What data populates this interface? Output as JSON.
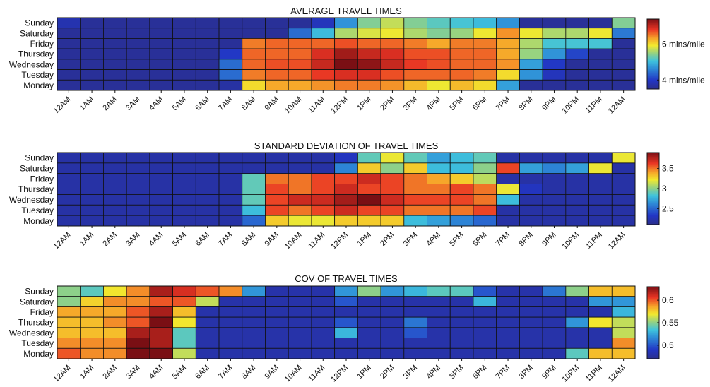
{
  "chart_data": [
    {
      "type": "heatmap",
      "title": "AVERAGE TRAVEL TIMES",
      "xlabel": "",
      "ylabel": "",
      "days": [
        "Sunday",
        "Saturday",
        "Friday",
        "Thursday",
        "Wednesday",
        "Tuesday",
        "Monday"
      ],
      "hours": [
        "12AM",
        "1AM",
        "2AM",
        "3AM",
        "4AM",
        "5AM",
        "6AM",
        "7AM",
        "8AM",
        "9AM",
        "10AM",
        "11AM",
        "12PM",
        "1PM",
        "2PM",
        "3PM",
        "4PM",
        "5PM",
        "6PM",
        "7PM",
        "8PM",
        "9PM",
        "10PM",
        "11PM",
        "12AM"
      ],
      "values": [
        [
          3.8,
          3.6,
          3.6,
          3.6,
          3.6,
          3.6,
          3.6,
          3.6,
          3.6,
          3.6,
          3.6,
          3.9,
          4.7,
          5.4,
          5.7,
          5.4,
          5.2,
          5.1,
          5.0,
          4.7,
          3.6,
          3.6,
          3.6,
          3.6,
          5.4
        ],
        [
          3.6,
          3.6,
          3.6,
          3.6,
          3.6,
          3.6,
          3.6,
          3.6,
          3.6,
          3.6,
          4.4,
          5.0,
          5.6,
          5.8,
          5.9,
          5.6,
          5.4,
          5.5,
          5.9,
          6.4,
          5.9,
          5.6,
          5.6,
          5.9,
          4.5
        ],
        [
          3.6,
          3.6,
          3.6,
          3.6,
          3.6,
          3.6,
          3.6,
          3.6,
          6.5,
          6.6,
          6.6,
          6.6,
          6.7,
          6.6,
          6.6,
          6.5,
          6.3,
          6.5,
          6.5,
          6.3,
          5.6,
          5.1,
          5.1,
          5.1,
          3.6
        ],
        [
          3.6,
          3.6,
          3.6,
          3.6,
          3.6,
          3.6,
          3.6,
          4.0,
          6.6,
          6.6,
          6.6,
          6.9,
          7.2,
          7.0,
          6.9,
          6.7,
          6.7,
          6.6,
          6.6,
          6.3,
          5.5,
          4.7,
          4.1,
          3.6,
          3.6
        ],
        [
          3.6,
          3.6,
          3.6,
          3.6,
          3.6,
          3.6,
          3.6,
          4.4,
          6.6,
          6.7,
          6.7,
          7.0,
          7.4,
          7.3,
          7.0,
          6.8,
          6.7,
          6.6,
          6.6,
          6.4,
          4.8,
          4.0,
          3.6,
          3.6,
          3.6
        ],
        [
          3.6,
          3.6,
          3.6,
          3.6,
          3.6,
          3.6,
          3.6,
          4.4,
          6.5,
          6.6,
          6.6,
          6.8,
          6.9,
          6.9,
          6.7,
          6.6,
          6.6,
          6.6,
          6.5,
          6.0,
          4.7,
          3.9,
          3.6,
          3.6,
          3.6
        ],
        [
          3.6,
          3.6,
          3.6,
          3.6,
          3.6,
          3.6,
          3.6,
          3.7,
          6.0,
          6.3,
          6.3,
          6.4,
          6.5,
          6.5,
          6.4,
          6.2,
          5.9,
          6.2,
          6.0,
          4.8,
          3.6,
          3.6,
          3.6,
          3.6,
          3.6
        ]
      ],
      "vmin": 3.5,
      "vmax": 7.4,
      "colorbar_ticks": [
        {
          "value": 4,
          "label": "4 mins/mile"
        },
        {
          "value": 6,
          "label": "6 mins/mile"
        }
      ],
      "grid": true,
      "colormap": "jet"
    },
    {
      "type": "heatmap",
      "title": "STANDARD DEVIATION OF TRAVEL TIMES",
      "xlabel": "",
      "ylabel": "",
      "days": [
        "Sunday",
        "Saturday",
        "Friday",
        "Thursday",
        "Wednesday",
        "Tuesday",
        "Monday"
      ],
      "hours": [
        "12AM",
        "1AM",
        "2AM",
        "3AM",
        "4AM",
        "5AM",
        "6AM",
        "7AM",
        "8AM",
        "9AM",
        "10AM",
        "11AM",
        "12PM",
        "1PM",
        "2PM",
        "3PM",
        "4PM",
        "5PM",
        "6PM",
        "7PM",
        "8PM",
        "9PM",
        "10PM",
        "11PM",
        "12AM"
      ],
      "values": [
        [
          2.2,
          2.2,
          2.2,
          2.2,
          2.2,
          2.2,
          2.2,
          2.2,
          2.2,
          2.2,
          2.2,
          2.2,
          2.3,
          2.9,
          3.2,
          2.9,
          2.7,
          2.8,
          2.9,
          2.2,
          2.2,
          2.2,
          2.2,
          2.2,
          3.2
        ],
        [
          2.2,
          2.2,
          2.2,
          2.2,
          2.2,
          2.2,
          2.2,
          2.2,
          2.2,
          2.2,
          2.2,
          2.2,
          2.6,
          3.3,
          3.0,
          3.3,
          2.8,
          2.8,
          3.0,
          3.6,
          2.7,
          2.6,
          2.7,
          3.2,
          2.2
        ],
        [
          2.2,
          2.2,
          2.2,
          2.2,
          2.2,
          2.2,
          2.2,
          2.2,
          2.9,
          3.5,
          3.5,
          3.6,
          3.6,
          3.7,
          3.6,
          3.5,
          3.4,
          3.3,
          3.1,
          2.2,
          2.2,
          2.2,
          2.2,
          2.2,
          2.2
        ],
        [
          2.2,
          2.2,
          2.2,
          2.2,
          2.2,
          2.2,
          2.2,
          2.2,
          2.9,
          3.6,
          3.5,
          3.6,
          3.7,
          3.6,
          3.6,
          3.5,
          3.5,
          3.6,
          3.5,
          3.2,
          2.3,
          2.2,
          2.2,
          2.2,
          2.2
        ],
        [
          2.2,
          2.2,
          2.2,
          2.2,
          2.2,
          2.2,
          2.2,
          2.2,
          2.9,
          3.6,
          3.7,
          3.7,
          3.8,
          3.9,
          3.7,
          3.6,
          3.6,
          3.6,
          3.5,
          2.8,
          2.2,
          2.2,
          2.2,
          2.2,
          2.2
        ],
        [
          2.2,
          2.2,
          2.2,
          2.2,
          2.2,
          2.2,
          2.2,
          2.2,
          2.8,
          3.6,
          3.5,
          3.6,
          3.7,
          3.6,
          3.6,
          3.5,
          3.5,
          3.5,
          3.6,
          2.2,
          2.2,
          2.2,
          2.2,
          2.2,
          2.2
        ],
        [
          2.2,
          2.2,
          2.2,
          2.2,
          2.2,
          2.2,
          2.2,
          2.2,
          2.5,
          3.3,
          3.2,
          3.2,
          3.3,
          3.3,
          3.3,
          2.8,
          2.7,
          2.6,
          2.5,
          2.2,
          2.2,
          2.2,
          2.2,
          2.2,
          2.2
        ]
      ],
      "vmin": 2.1,
      "vmax": 3.9,
      "colorbar_ticks": [
        {
          "value": 2.5,
          "label": "2.5"
        },
        {
          "value": 3,
          "label": "3"
        },
        {
          "value": 3.5,
          "label": "3.5"
        }
      ],
      "grid": true,
      "colormap": "jet"
    },
    {
      "type": "heatmap",
      "title": "COV OF TRAVEL TIMES",
      "xlabel": "",
      "ylabel": "",
      "days": [
        "Sunday",
        "Saturday",
        "Friday",
        "Thursday",
        "Wednesday",
        "Tuesday",
        "Monday"
      ],
      "hours": [
        "12AM",
        "1AM",
        "2AM",
        "3AM",
        "4AM",
        "5AM",
        "6AM",
        "7AM",
        "8AM",
        "9AM",
        "10AM",
        "11AM",
        "12PM",
        "1PM",
        "2PM",
        "3PM",
        "4PM",
        "5PM",
        "6PM",
        "7PM",
        "8PM",
        "9PM",
        "10PM",
        "11PM",
        "12AM"
      ],
      "values": [
        [
          0.55,
          0.54,
          0.57,
          0.59,
          0.62,
          0.61,
          0.6,
          0.59,
          0.52,
          0.48,
          0.48,
          0.48,
          0.52,
          0.55,
          0.52,
          0.53,
          0.54,
          0.54,
          0.5,
          0.48,
          0.48,
          0.51,
          0.55,
          0.58,
          0.58
        ],
        [
          0.55,
          0.575,
          0.59,
          0.59,
          0.6,
          0.6,
          0.56,
          0.48,
          0.48,
          0.48,
          0.48,
          0.48,
          0.5,
          0.48,
          0.48,
          0.48,
          0.48,
          0.48,
          0.53,
          0.48,
          0.48,
          0.48,
          0.48,
          0.52,
          0.52
        ],
        [
          0.585,
          0.585,
          0.585,
          0.6,
          0.62,
          0.58,
          0.48,
          0.48,
          0.48,
          0.48,
          0.48,
          0.48,
          0.48,
          0.48,
          0.48,
          0.48,
          0.48,
          0.48,
          0.48,
          0.48,
          0.48,
          0.48,
          0.48,
          0.48,
          0.53
        ],
        [
          0.58,
          0.58,
          0.59,
          0.6,
          0.63,
          0.57,
          0.48,
          0.48,
          0.48,
          0.48,
          0.48,
          0.48,
          0.5,
          0.48,
          0.48,
          0.51,
          0.48,
          0.48,
          0.48,
          0.48,
          0.48,
          0.48,
          0.52,
          0.57,
          0.56
        ],
        [
          0.58,
          0.58,
          0.58,
          0.62,
          0.62,
          0.54,
          0.48,
          0.48,
          0.48,
          0.48,
          0.48,
          0.48,
          0.53,
          0.48,
          0.48,
          0.5,
          0.48,
          0.48,
          0.48,
          0.48,
          0.48,
          0.48,
          0.48,
          0.48,
          0.56
        ],
        [
          0.59,
          0.59,
          0.59,
          0.63,
          0.62,
          0.54,
          0.48,
          0.48,
          0.48,
          0.48,
          0.48,
          0.48,
          0.48,
          0.48,
          0.48,
          0.48,
          0.48,
          0.48,
          0.48,
          0.48,
          0.48,
          0.48,
          0.48,
          0.48,
          0.59
        ],
        [
          0.6,
          0.59,
          0.59,
          0.63,
          0.64,
          0.56,
          0.48,
          0.48,
          0.48,
          0.48,
          0.48,
          0.48,
          0.48,
          0.48,
          0.48,
          0.48,
          0.48,
          0.48,
          0.48,
          0.48,
          0.48,
          0.48,
          0.54,
          0.58,
          0.58
        ]
      ],
      "vmin": 0.47,
      "vmax": 0.63,
      "colorbar_ticks": [
        {
          "value": 0.5,
          "label": "0.5"
        },
        {
          "value": 0.55,
          "label": "0.55"
        },
        {
          "value": 0.6,
          "label": "0.6"
        }
      ],
      "grid": true,
      "colormap": "jet"
    }
  ]
}
